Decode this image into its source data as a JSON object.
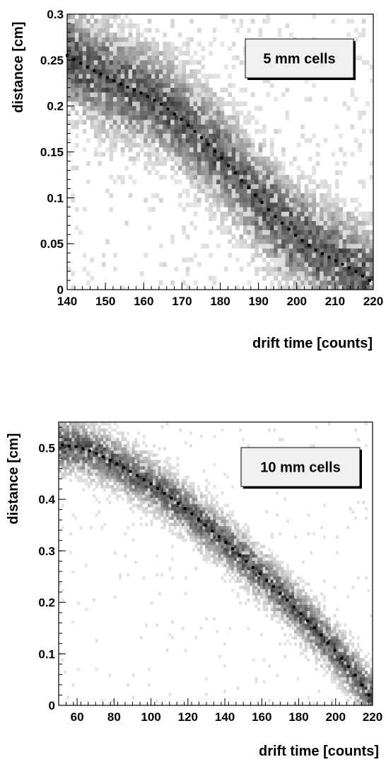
{
  "chart_data": [
    {
      "type": "heatmap",
      "title": "5 mm cells",
      "xlabel": "drift time [counts]",
      "ylabel": "distance [cm]",
      "xlim": [
        140,
        220
      ],
      "ylim": [
        0,
        0.3
      ],
      "x_ticks": [
        140,
        150,
        160,
        170,
        180,
        190,
        200,
        210,
        220
      ],
      "x_tick_labels": [
        "140",
        "150",
        "160",
        "170",
        "180",
        "190",
        "200",
        "210",
        "220"
      ],
      "y_ticks": [
        0,
        0.05,
        0.1,
        0.15,
        0.2,
        0.25,
        0.3
      ],
      "y_tick_labels": [
        "0",
        "0.05",
        "0.1",
        "0.15",
        "0.2",
        "0.25",
        "0.3"
      ],
      "legend_position": "top-right",
      "fit_curve": {
        "x": [
          140,
          145,
          150,
          155,
          160,
          165,
          170,
          175,
          180,
          185,
          190,
          195,
          200,
          205,
          210,
          215,
          219
        ],
        "y": [
          0.255,
          0.243,
          0.232,
          0.222,
          0.213,
          0.201,
          0.185,
          0.166,
          0.145,
          0.122,
          0.099,
          0.077,
          0.058,
          0.043,
          0.032,
          0.021,
          0.01
        ]
      }
    },
    {
      "type": "heatmap",
      "title": "10 mm cells",
      "xlabel": "drift time [counts]",
      "ylabel": "distance [cm]",
      "xlim": [
        50,
        220
      ],
      "ylim": [
        0,
        0.55
      ],
      "x_ticks": [
        60,
        80,
        100,
        120,
        140,
        160,
        180,
        200,
        220
      ],
      "x_tick_labels": [
        "60",
        "80",
        "100",
        "120",
        "140",
        "160",
        "180",
        "200",
        "220"
      ],
      "y_ticks": [
        0,
        0.1,
        0.2,
        0.3,
        0.4,
        0.5
      ],
      "y_tick_labels": [
        "0",
        "0.1",
        "0.2",
        "0.3",
        "0.4",
        "0.5"
      ],
      "legend_position": "top-right",
      "fit_curve": {
        "x": [
          52,
          60,
          70,
          80,
          90,
          100,
          110,
          120,
          130,
          140,
          150,
          160,
          170,
          180,
          190,
          200,
          210,
          218
        ],
        "y": [
          0.505,
          0.502,
          0.49,
          0.472,
          0.452,
          0.43,
          0.405,
          0.378,
          0.348,
          0.318,
          0.285,
          0.252,
          0.218,
          0.182,
          0.145,
          0.105,
          0.062,
          0.02
        ]
      }
    }
  ]
}
